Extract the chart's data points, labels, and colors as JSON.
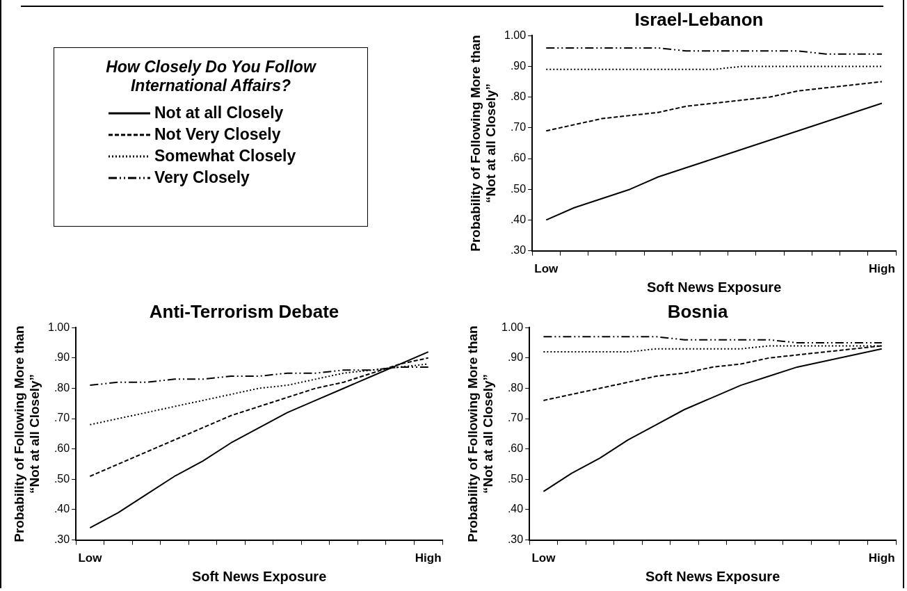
{
  "chart_data": [
    {
      "type": "line",
      "title": "Israel-Lebanon",
      "xlabel": "Soft News Exposure",
      "ylabel": "Probability of Following More than “Not at all Closely”",
      "legend": "left",
      "legend_title": "How Closely Do You Follow International Affairs?",
      "marker": "none",
      "categories": [
        "Low",
        null,
        null,
        null,
        null,
        null,
        null,
        null,
        null,
        null,
        null,
        null,
        "High"
      ],
      "ylim": [
        0.3,
        1.0
      ],
      "yticks": [
        {
          "value": 0.3,
          "label": ".30"
        },
        {
          "value": 0.4,
          "label": ".40"
        },
        {
          "value": 0.5,
          "label": ".50"
        },
        {
          "value": 0.6,
          "label": ".60"
        },
        {
          "value": 0.7,
          "label": ".70"
        },
        {
          "value": 0.8,
          "label": ".80"
        },
        {
          "value": 0.9,
          "label": ".90"
        },
        {
          "value": 1.0,
          "label": "1.00"
        }
      ],
      "series": [
        {
          "name": "Not at all Closely",
          "color": "#000000",
          "line_style": "solid",
          "values": [
            0.4,
            0.44,
            0.47,
            0.5,
            0.54,
            0.57,
            0.6,
            0.63,
            0.66,
            0.69,
            0.72,
            0.75,
            0.78
          ]
        },
        {
          "name": "Not Very Closely",
          "color": "#000000",
          "line_style": "dashed",
          "values": [
            0.69,
            0.71,
            0.73,
            0.74,
            0.75,
            0.77,
            0.78,
            0.79,
            0.8,
            0.82,
            0.83,
            0.84,
            0.85
          ]
        },
        {
          "name": "Somewhat Closely",
          "color": "#000000",
          "line_style": "dotted",
          "values": [
            0.89,
            0.89,
            0.89,
            0.89,
            0.89,
            0.89,
            0.89,
            0.9,
            0.9,
            0.9,
            0.9,
            0.9,
            0.9
          ]
        },
        {
          "name": "Very Closely",
          "color": "#000000",
          "line_style": "dashdot",
          "values": [
            0.96,
            0.96,
            0.96,
            0.96,
            0.96,
            0.95,
            0.95,
            0.95,
            0.95,
            0.95,
            0.94,
            0.94,
            0.94
          ]
        }
      ]
    },
    {
      "type": "line",
      "title": "Anti-Terrorism Debate",
      "xlabel": "Soft News Exposure",
      "ylabel": "Probability of Following More than “Not at all Closely”",
      "marker": "none",
      "categories": [
        "Low",
        null,
        null,
        null,
        null,
        null,
        null,
        null,
        null,
        null,
        null,
        null,
        "High"
      ],
      "ylim": [
        0.3,
        1.0
      ],
      "yticks": [
        {
          "value": 0.3,
          "label": ".30"
        },
        {
          "value": 0.4,
          "label": ".40"
        },
        {
          "value": 0.5,
          "label": ".50"
        },
        {
          "value": 0.6,
          "label": ".60"
        },
        {
          "value": 0.7,
          "label": ".70"
        },
        {
          "value": 0.8,
          "label": ".80"
        },
        {
          "value": 0.9,
          "label": ".90"
        },
        {
          "value": 1.0,
          "label": "1.00"
        }
      ],
      "series": [
        {
          "color": "#000000",
          "line_style": "solid",
          "values": [
            0.34,
            0.39,
            0.45,
            0.51,
            0.56,
            0.62,
            0.67,
            0.72,
            0.76,
            0.8,
            0.84,
            0.88,
            0.92
          ]
        },
        {
          "color": "#000000",
          "line_style": "dashed",
          "values": [
            0.51,
            0.55,
            0.59,
            0.63,
            0.67,
            0.71,
            0.74,
            0.77,
            0.8,
            0.82,
            0.85,
            0.88,
            0.9
          ]
        },
        {
          "color": "#000000",
          "line_style": "dotted",
          "values": [
            0.68,
            0.7,
            0.72,
            0.74,
            0.76,
            0.78,
            0.8,
            0.81,
            0.83,
            0.85,
            0.86,
            0.87,
            0.88
          ]
        },
        {
          "color": "#000000",
          "line_style": "dashdot",
          "values": [
            0.81,
            0.82,
            0.82,
            0.83,
            0.83,
            0.84,
            0.84,
            0.85,
            0.85,
            0.86,
            0.86,
            0.87,
            0.87
          ]
        }
      ]
    },
    {
      "type": "line",
      "title": "Bosnia",
      "xlabel": "Soft News Exposure",
      "ylabel": "Probability of Following More than “Not at all Closely”",
      "marker": "none",
      "categories": [
        "Low",
        null,
        null,
        null,
        null,
        null,
        null,
        null,
        null,
        null,
        null,
        null,
        "High"
      ],
      "ylim": [
        0.3,
        1.0
      ],
      "yticks": [
        {
          "value": 0.3,
          "label": ".30"
        },
        {
          "value": 0.4,
          "label": ".40"
        },
        {
          "value": 0.5,
          "label": ".50"
        },
        {
          "value": 0.6,
          "label": ".60"
        },
        {
          "value": 0.7,
          "label": ".70"
        },
        {
          "value": 0.8,
          "label": ".80"
        },
        {
          "value": 0.9,
          "label": ".90"
        },
        {
          "value": 1.0,
          "label": "1.00"
        }
      ],
      "series": [
        {
          "color": "#000000",
          "line_style": "solid",
          "values": [
            0.46,
            0.52,
            0.57,
            0.63,
            0.68,
            0.73,
            0.77,
            0.81,
            0.84,
            0.87,
            0.89,
            0.91,
            0.93
          ]
        },
        {
          "color": "#000000",
          "line_style": "dashed",
          "values": [
            0.76,
            0.78,
            0.8,
            0.82,
            0.84,
            0.85,
            0.87,
            0.88,
            0.9,
            0.91,
            0.92,
            0.93,
            0.94
          ]
        },
        {
          "color": "#000000",
          "line_style": "dotted",
          "values": [
            0.92,
            0.92,
            0.92,
            0.92,
            0.93,
            0.93,
            0.93,
            0.93,
            0.94,
            0.94,
            0.94,
            0.94,
            0.94
          ]
        },
        {
          "color": "#000000",
          "line_style": "dashdot",
          "values": [
            0.97,
            0.97,
            0.97,
            0.97,
            0.97,
            0.96,
            0.96,
            0.96,
            0.96,
            0.95,
            0.95,
            0.95,
            0.95
          ]
        }
      ]
    }
  ]
}
